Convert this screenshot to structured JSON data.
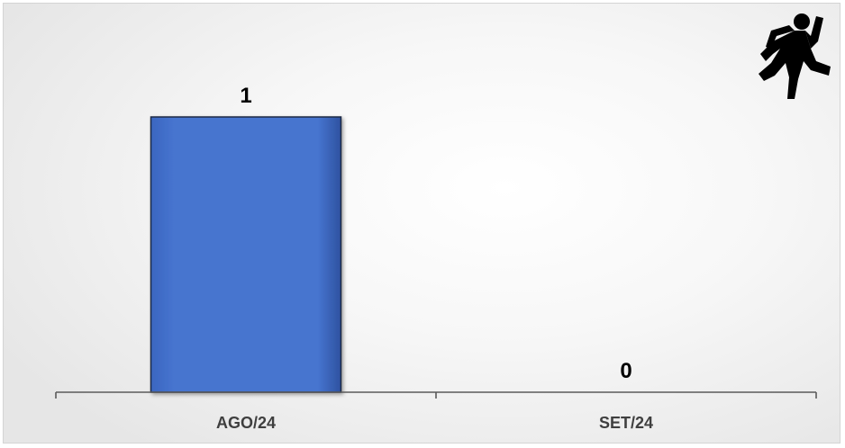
{
  "chart_data": {
    "type": "bar",
    "categories": [
      "AGO/24",
      "SET/24"
    ],
    "values": [
      1,
      0
    ],
    "title": "",
    "xlabel": "",
    "ylabel": "",
    "ylim": [
      0,
      1.0
    ],
    "grid": false,
    "legend": "none",
    "bar_color": "#4674CF",
    "bar_edge_color": "#1F2A44",
    "axis_color": "#5A5A5A",
    "icon": "running-person-icon"
  }
}
